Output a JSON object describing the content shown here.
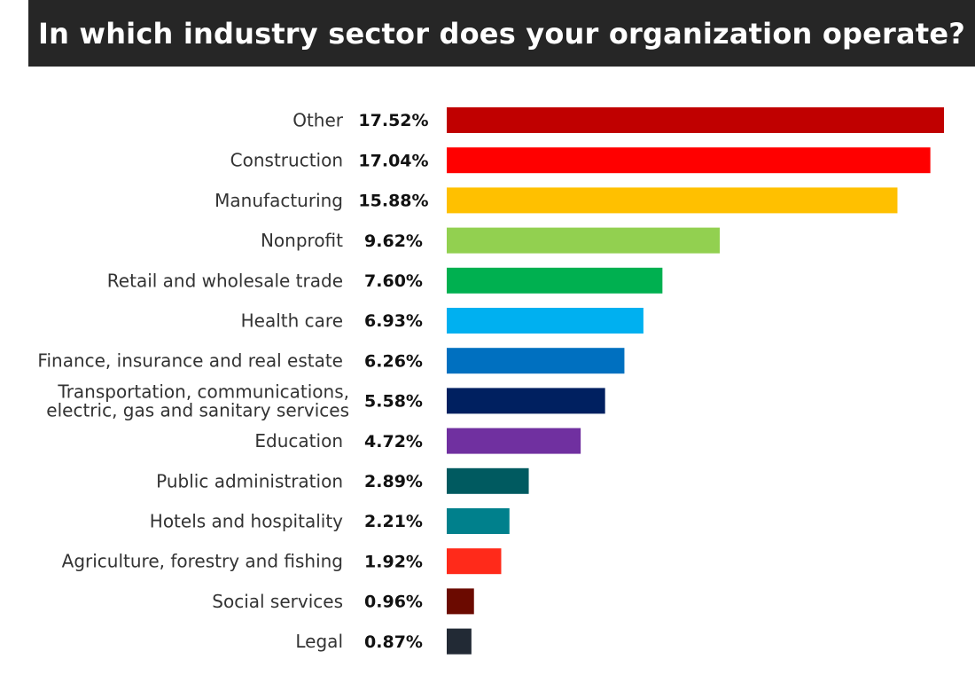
{
  "title": "In which industry sector does your organization operate?",
  "chart_data": {
    "type": "bar",
    "orientation": "horizontal",
    "title": "In which industry sector does your organization operate?",
    "xlabel": "",
    "ylabel": "",
    "grid": false,
    "xlim": [
      0,
      17.52
    ],
    "categories": [
      "Other",
      "Construction",
      "Manufacturing",
      "Nonprofit",
      "Retail and wholesale trade",
      "Health care",
      "Finance, insurance and real estate",
      "Transportation, communications,\nelectric, gas and sanitary services",
      "Education",
      "Public administration",
      "Hotels and hospitality",
      "Agriculture, forestry and fishing",
      "Social services",
      "Legal"
    ],
    "values": [
      17.52,
      17.04,
      15.88,
      9.62,
      7.6,
      6.93,
      6.26,
      5.58,
      4.72,
      2.89,
      2.21,
      1.92,
      0.96,
      0.87
    ],
    "value_labels": [
      "17.52%",
      "17.04%",
      "15.88%",
      "9.62%",
      "7.60%",
      "6.93%",
      "6.26%",
      "5.58%",
      "4.72%",
      "2.89%",
      "2.21%",
      "1.92%",
      "0.96%",
      "0.87%"
    ],
    "colors": [
      "#c00000",
      "#ff0000",
      "#ffc000",
      "#92d050",
      "#00b050",
      "#00b0f0",
      "#0070c0",
      "#002060",
      "#7030a0",
      "#005a60",
      "#00808c",
      "#ff2a1a",
      "#6b0a00",
      "#222a35"
    ]
  }
}
